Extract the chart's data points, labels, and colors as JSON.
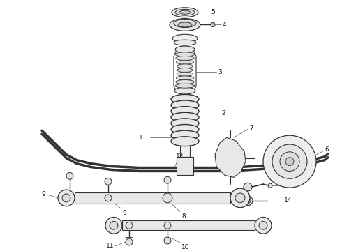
{
  "background_color": "#ffffff",
  "line_color": "#222222",
  "fig_width": 4.9,
  "fig_height": 3.6,
  "dpi": 100,
  "label_fontsize": 6.5,
  "component_color": "#333333"
}
